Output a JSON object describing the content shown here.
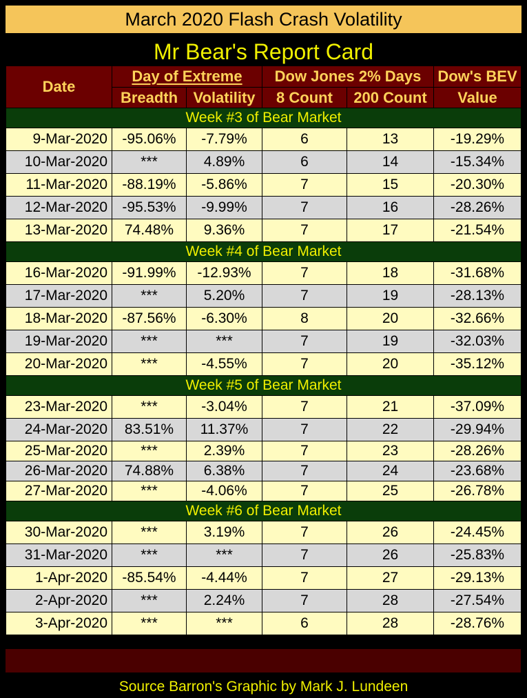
{
  "title": "March 2020 Flash Crash Volatility",
  "subtitle": "Mr Bear's Report Card",
  "header": {
    "date": "Date",
    "day_of_extreme": "Day of Extreme",
    "breadth": "Breadth",
    "volatility": "Volatility",
    "dow_2pct": "Dow Jones 2% Days",
    "count8": "8 Count",
    "count200": "200 Count",
    "bev_top": "Dow's BEV",
    "bev_bot": "Value"
  },
  "chart_data": {
    "type": "table",
    "columns": [
      "Date",
      "Breadth",
      "Volatility",
      "8 Count",
      "200 Count",
      "Dow's BEV Value"
    ],
    "weeks": [
      {
        "label": "Week #3 of Bear Market",
        "rows": [
          [
            "9-Mar-2020",
            "-95.06%",
            "-7.79%",
            "6",
            "13",
            "-19.29%"
          ],
          [
            "10-Mar-2020",
            "***",
            "4.89%",
            "6",
            "14",
            "-15.34%"
          ],
          [
            "11-Mar-2020",
            "-88.19%",
            "-5.86%",
            "7",
            "15",
            "-20.30%"
          ],
          [
            "12-Mar-2020",
            "-95.53%",
            "-9.99%",
            "7",
            "16",
            "-28.26%"
          ],
          [
            "13-Mar-2020",
            "74.48%",
            "9.36%",
            "7",
            "17",
            "-21.54%"
          ]
        ]
      },
      {
        "label": "Week #4 of Bear Market",
        "rows": [
          [
            "16-Mar-2020",
            "-91.99%",
            "-12.93%",
            "7",
            "18",
            "-31.68%"
          ],
          [
            "17-Mar-2020",
            "***",
            "5.20%",
            "7",
            "19",
            "-28.13%"
          ],
          [
            "18-Mar-2020",
            "-87.56%",
            "-6.30%",
            "8",
            "20",
            "-32.66%"
          ],
          [
            "19-Mar-2020",
            "***",
            "***",
            "7",
            "19",
            "-32.03%"
          ],
          [
            "20-Mar-2020",
            "***",
            "-4.55%",
            "7",
            "20",
            "-35.12%"
          ]
        ]
      },
      {
        "label": "Week #5 of Bear Market",
        "rows": [
          [
            "23-Mar-2020",
            "***",
            "-3.04%",
            "7",
            "21",
            "-37.09%"
          ],
          [
            "24-Mar-2020",
            "83.51%",
            "11.37%",
            "7",
            "22",
            "-29.94%"
          ],
          [
            "25-Mar-2020",
            "***",
            "2.39%",
            "7",
            "23",
            "-28.26%"
          ],
          [
            "26-Mar-2020",
            "74.88%",
            "6.38%",
            "7",
            "24",
            "-23.68%"
          ],
          [
            "27-Mar-2020",
            "***",
            "-4.06%",
            "7",
            "25",
            "-26.78%"
          ]
        ]
      },
      {
        "label": "Week #6 of Bear Market",
        "rows": [
          [
            "30-Mar-2020",
            "***",
            "3.19%",
            "7",
            "26",
            "-24.45%"
          ],
          [
            "31-Mar-2020",
            "***",
            "***",
            "7",
            "26",
            "-25.83%"
          ],
          [
            "1-Apr-2020",
            "-85.54%",
            "-4.44%",
            "7",
            "27",
            "-29.13%"
          ],
          [
            "2-Apr-2020",
            "***",
            "2.24%",
            "7",
            "28",
            "-27.54%"
          ],
          [
            "3-Apr-2020",
            "***",
            "***",
            "6",
            "28",
            "-28.76%"
          ]
        ]
      }
    ]
  },
  "footer": "Source Barron's  Graphic by Mark J. Lundeen",
  "colors": {
    "title_bg": "#f5c55a",
    "header_bg": "#6b0000",
    "header_text": "#ffd35a",
    "week_bg": "#0a3d0a",
    "week_text": "#f0f000",
    "row_odd": "#fffbc0",
    "row_even": "#d8d8d8"
  }
}
